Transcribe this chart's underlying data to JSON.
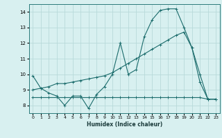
{
  "xlabel": "Humidex (Indice chaleur)",
  "bg_color": "#d8f0f0",
  "grid_color": "#b8dada",
  "line_color": "#1a6b6b",
  "xlim": [
    -0.5,
    23.5
  ],
  "ylim": [
    7.5,
    14.5
  ],
  "xticks": [
    0,
    1,
    2,
    3,
    4,
    5,
    6,
    7,
    8,
    9,
    10,
    11,
    12,
    13,
    14,
    15,
    16,
    17,
    18,
    19,
    20,
    21,
    22,
    23
  ],
  "yticks": [
    8,
    9,
    10,
    11,
    12,
    13,
    14
  ],
  "series": [
    {
      "x": [
        0,
        1,
        2,
        3,
        4,
        5,
        6,
        7,
        8,
        9,
        10,
        11,
        12,
        13,
        14,
        15,
        16,
        17,
        18,
        19,
        20,
        21,
        22,
        23
      ],
      "y": [
        9.9,
        9.1,
        8.8,
        8.6,
        8.0,
        8.6,
        8.6,
        7.8,
        8.7,
        9.2,
        10.0,
        12.0,
        10.0,
        10.3,
        12.4,
        13.5,
        14.1,
        14.2,
        14.2,
        13.0,
        11.7,
        10.0,
        8.4,
        8.4
      ]
    },
    {
      "x": [
        0,
        1,
        2,
        3,
        4,
        5,
        6,
        7,
        8,
        9,
        10,
        11,
        12,
        13,
        14,
        15,
        16,
        17,
        18,
        19,
        20,
        21,
        22,
        23
      ],
      "y": [
        8.5,
        8.5,
        8.5,
        8.5,
        8.5,
        8.5,
        8.5,
        8.5,
        8.5,
        8.5,
        8.5,
        8.5,
        8.5,
        8.5,
        8.5,
        8.5,
        8.5,
        8.5,
        8.5,
        8.5,
        8.5,
        8.5,
        8.4,
        8.4
      ]
    },
    {
      "x": [
        0,
        1,
        2,
        3,
        4,
        5,
        6,
        7,
        8,
        9,
        10,
        11,
        12,
        13,
        14,
        15,
        16,
        17,
        18,
        19,
        20,
        21,
        22,
        23
      ],
      "y": [
        9.0,
        9.1,
        9.2,
        9.4,
        9.4,
        9.5,
        9.6,
        9.7,
        9.8,
        9.9,
        10.1,
        10.4,
        10.7,
        11.0,
        11.3,
        11.6,
        11.9,
        12.2,
        12.5,
        12.7,
        11.7,
        9.5,
        8.4,
        8.4
      ]
    }
  ]
}
